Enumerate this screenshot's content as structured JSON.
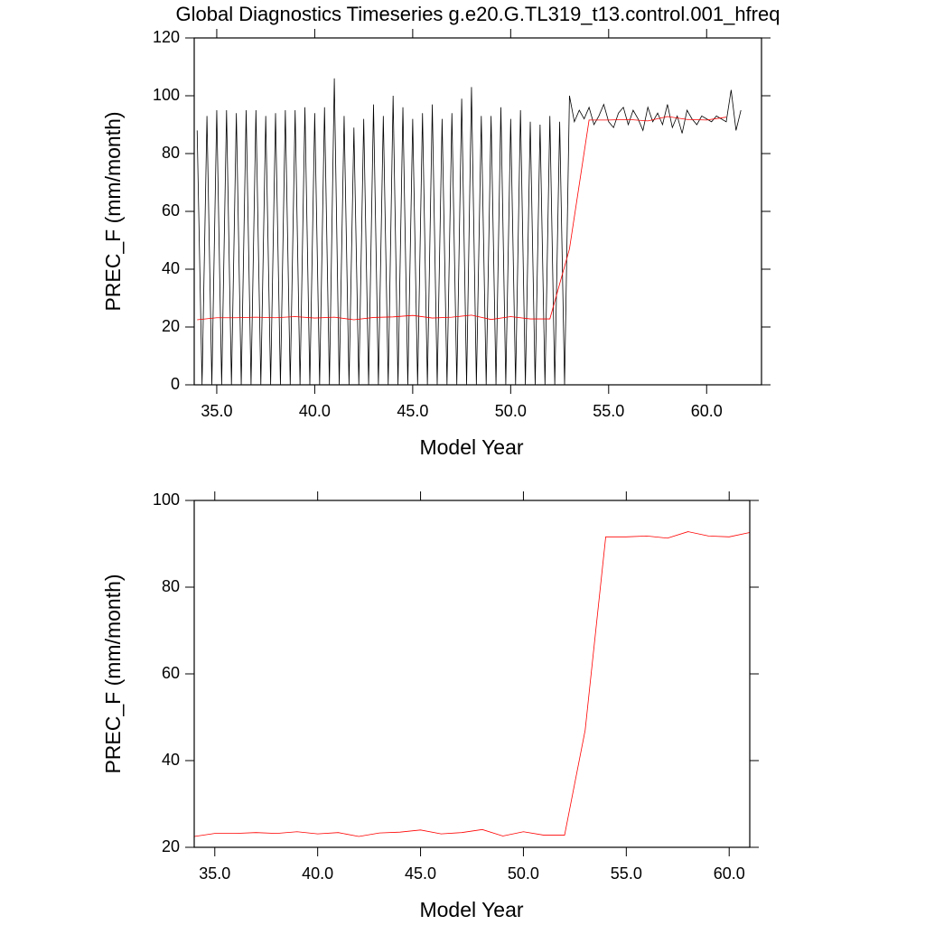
{
  "chart_data": [
    {
      "type": "line",
      "title": "Global Diagnostics Timeseries g.e20.G.TL319_t13.control.001_hfreq",
      "xlabel": "Model Year",
      "ylabel": "PREC_F (mm/month)",
      "xlim": [
        33.85,
        62.8
      ],
      "ylim": [
        0,
        120
      ],
      "xticks": [
        {
          "value": 35,
          "label": "35.0"
        },
        {
          "value": 40,
          "label": "40.0"
        },
        {
          "value": 45,
          "label": "45.0"
        },
        {
          "value": 50,
          "label": "50.0"
        },
        {
          "value": 55,
          "label": "55.0"
        },
        {
          "value": 60,
          "label": "60.0"
        }
      ],
      "yticks": [
        0,
        20,
        40,
        60,
        80,
        100,
        120
      ],
      "series": [
        {
          "color": "#000000",
          "x": [
            34,
            34.25,
            34.5,
            34.75,
            35,
            35.25,
            35.5,
            35.75,
            36,
            36.25,
            36.5,
            36.75,
            37,
            37.25,
            37.5,
            37.75,
            38,
            38.25,
            38.5,
            38.75,
            39,
            39.25,
            39.5,
            39.75,
            40,
            40.25,
            40.5,
            40.75,
            41,
            41.25,
            41.5,
            41.75,
            42,
            42.25,
            42.5,
            42.75,
            43,
            43.25,
            43.5,
            43.75,
            44,
            44.25,
            44.5,
            44.75,
            45,
            45.25,
            45.5,
            45.75,
            46,
            46.25,
            46.5,
            46.75,
            47,
            47.25,
            47.5,
            47.75,
            48,
            48.25,
            48.5,
            48.75,
            49,
            49.25,
            49.5,
            49.75,
            50,
            50.25,
            50.5,
            50.75,
            51,
            51.25,
            51.5,
            51.75,
            52,
            52.25,
            52.5,
            52.75,
            53,
            53.25,
            53.5,
            53.75,
            54,
            54.25,
            54.5,
            54.75,
            55,
            55.25,
            55.5,
            55.75,
            56,
            56.25,
            56.5,
            56.75,
            57,
            57.25,
            57.5,
            57.75,
            58,
            58.25,
            58.5,
            58.75,
            59,
            59.25,
            59.5,
            59.75,
            60,
            60.25,
            60.5,
            60.75,
            61,
            61.25,
            61.5,
            61.75
          ],
          "values": [
            88,
            0,
            93,
            0,
            95,
            0,
            95,
            0,
            94,
            0,
            95,
            0,
            95,
            0,
            93,
            0,
            94,
            0,
            95,
            0,
            95,
            0,
            96,
            0,
            94,
            0,
            96,
            0,
            106,
            0,
            93,
            0,
            89,
            0,
            92,
            0,
            97,
            0,
            93,
            0,
            100,
            0,
            96,
            0,
            92,
            0,
            94,
            0,
            97,
            0,
            92,
            0,
            94,
            0,
            99,
            0,
            103,
            0,
            93,
            0,
            93,
            0,
            96,
            0,
            92,
            0,
            95,
            0,
            91,
            0,
            90,
            0,
            93,
            0,
            91,
            0,
            100,
            91,
            95,
            92,
            96,
            90,
            93,
            97,
            91,
            89,
            94,
            96,
            90,
            95,
            92,
            88,
            96,
            91,
            94,
            90,
            97,
            89,
            93,
            87,
            95,
            92,
            90,
            93,
            92,
            91,
            93,
            92,
            91,
            102,
            88,
            95
          ]
        },
        {
          "color": "#ff0000",
          "x": [
            34,
            35,
            36,
            37,
            38,
            39,
            40,
            41,
            42,
            43,
            44,
            45,
            46,
            47,
            48,
            49,
            50,
            51,
            52,
            53,
            54,
            55,
            56,
            57,
            58,
            59,
            60,
            61
          ],
          "values": [
            22.5,
            23.2,
            23.2,
            23.4,
            23.2,
            23.6,
            23.1,
            23.4,
            22.5,
            23.3,
            23.5,
            24.0,
            23.1,
            23.4,
            24.1,
            22.6,
            23.6,
            22.8,
            22.8,
            47,
            91.6,
            91.6,
            91.8,
            91.3,
            92.8,
            91.8,
            91.6,
            92.6
          ]
        }
      ]
    },
    {
      "type": "line",
      "xlabel": "Model Year",
      "ylabel": "PREC_F (mm/month)",
      "xlim": [
        34,
        61
      ],
      "ylim": [
        20,
        100
      ],
      "xticks": [
        {
          "value": 35,
          "label": "35.0"
        },
        {
          "value": 40,
          "label": "40.0"
        },
        {
          "value": 45,
          "label": "45.0"
        },
        {
          "value": 50,
          "label": "50.0"
        },
        {
          "value": 55,
          "label": "55.0"
        },
        {
          "value": 60,
          "label": "60.0"
        }
      ],
      "yticks": [
        20,
        40,
        60,
        80,
        100
      ],
      "series": [
        {
          "color": "#ff0000",
          "x": [
            34,
            35,
            36,
            37,
            38,
            39,
            40,
            41,
            42,
            43,
            44,
            45,
            46,
            47,
            48,
            49,
            50,
            51,
            52,
            53,
            54,
            55,
            56,
            57,
            58,
            59,
            60,
            61
          ],
          "values": [
            22.5,
            23.2,
            23.2,
            23.4,
            23.2,
            23.6,
            23.1,
            23.4,
            22.5,
            23.3,
            23.5,
            24.0,
            23.1,
            23.4,
            24.1,
            22.6,
            23.6,
            22.8,
            22.8,
            47,
            91.6,
            91.6,
            91.8,
            91.3,
            92.8,
            91.8,
            91.6,
            92.6
          ]
        }
      ]
    }
  ]
}
